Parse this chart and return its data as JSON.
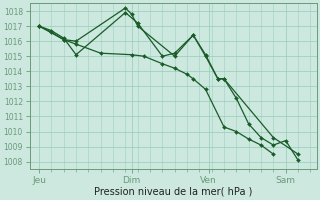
{
  "bg_color": "#cce8df",
  "grid_color": "#9ecfbf",
  "line_color": "#1a5c28",
  "marker_color": "#1a5c28",
  "xlabel": "Pression niveau de la mer( hPa )",
  "ylim": [
    1007.5,
    1018.5
  ],
  "yticks": [
    1008,
    1009,
    1010,
    1011,
    1012,
    1013,
    1014,
    1015,
    1016,
    1017,
    1018
  ],
  "xtick_labels": [
    "Jeu",
    "Dim",
    "Ven",
    "Sam"
  ],
  "xtick_positions": [
    0.0,
    3.0,
    5.5,
    8.0
  ],
  "xlim": [
    -0.3,
    9.0
  ],
  "series1_x": [
    0.0,
    0.4,
    0.8,
    1.2,
    2.8,
    3.2,
    4.0,
    4.4,
    5.0,
    5.4,
    5.8,
    6.0,
    6.4,
    6.8,
    7.2,
    7.6,
    8.0,
    8.4
  ],
  "series1_y": [
    1017.0,
    1016.7,
    1016.2,
    1015.1,
    1017.9,
    1017.2,
    1015.0,
    1015.2,
    1016.4,
    1015.1,
    1013.5,
    1013.5,
    1012.2,
    1010.5,
    1009.6,
    1009.1,
    1009.4,
    1008.1
  ],
  "series2_x": [
    0.0,
    0.4,
    0.8,
    1.2,
    2.8,
    3.0,
    3.2,
    4.4,
    5.0,
    5.4,
    5.8,
    6.0,
    7.6,
    8.4
  ],
  "series2_y": [
    1017.0,
    1016.6,
    1016.1,
    1016.0,
    1018.2,
    1017.8,
    1017.0,
    1015.0,
    1016.4,
    1015.0,
    1013.5,
    1013.5,
    1009.6,
    1008.5
  ],
  "series3_x": [
    0.0,
    0.8,
    1.2,
    2.0,
    3.0,
    3.4,
    4.0,
    4.4,
    4.8,
    5.0,
    5.4,
    6.0,
    6.4,
    6.8,
    7.2,
    7.6
  ],
  "series3_y": [
    1017.0,
    1016.1,
    1015.8,
    1015.2,
    1015.1,
    1015.0,
    1014.5,
    1014.2,
    1013.8,
    1013.5,
    1012.8,
    1010.3,
    1010.0,
    1009.5,
    1009.1,
    1008.5
  ]
}
